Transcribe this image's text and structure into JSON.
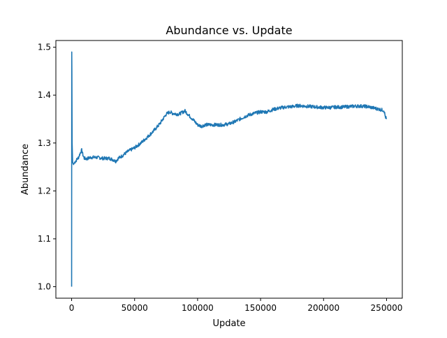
{
  "chart_data": {
    "type": "line",
    "title": "Abundance vs. Update",
    "xlabel": "Update",
    "ylabel": "Abundance",
    "xlim": [
      -12500,
      262500
    ],
    "ylim": [
      0.976,
      1.514
    ],
    "xticks": [
      0,
      50000,
      100000,
      150000,
      200000,
      250000
    ],
    "xtick_labels": [
      "0",
      "50000",
      "100000",
      "150000",
      "200000",
      "250000"
    ],
    "yticks": [
      1.0,
      1.1,
      1.2,
      1.3,
      1.4,
      1.5
    ],
    "ytick_labels": [
      "1.0",
      "1.1",
      "1.2",
      "1.3",
      "1.4",
      "1.5"
    ],
    "grid": false,
    "legend": "none",
    "series": [
      {
        "color": "#1f77b4",
        "x": [
          0,
          100,
          200,
          400,
          800,
          1500,
          2500,
          4000,
          5500,
          7000,
          8000,
          9000,
          10000,
          12000,
          15000,
          20000,
          25000,
          30000,
          33000,
          35000,
          37000,
          40000,
          45000,
          50000,
          55000,
          60000,
          65000,
          70000,
          75000,
          78000,
          80000,
          85000,
          90000,
          93000,
          96000,
          100000,
          103000,
          106000,
          110000,
          115000,
          120000,
          125000,
          130000,
          135000,
          140000,
          145000,
          150000,
          155000,
          160000,
          165000,
          170000,
          175000,
          180000,
          185000,
          190000,
          195000,
          200000,
          205000,
          210000,
          215000,
          220000,
          225000,
          230000,
          235000,
          240000,
          245000,
          248000,
          249000,
          250000
        ],
        "y": [
          1.0,
          1.49,
          1.45,
          1.3,
          1.26,
          1.255,
          1.26,
          1.265,
          1.27,
          1.28,
          1.285,
          1.275,
          1.268,
          1.267,
          1.27,
          1.27,
          1.268,
          1.268,
          1.265,
          1.262,
          1.268,
          1.273,
          1.283,
          1.29,
          1.3,
          1.312,
          1.325,
          1.34,
          1.36,
          1.365,
          1.362,
          1.36,
          1.367,
          1.358,
          1.35,
          1.338,
          1.335,
          1.338,
          1.338,
          1.338,
          1.338,
          1.34,
          1.345,
          1.352,
          1.358,
          1.362,
          1.365,
          1.365,
          1.37,
          1.373,
          1.375,
          1.376,
          1.378,
          1.377,
          1.376,
          1.375,
          1.374,
          1.374,
          1.375,
          1.375,
          1.376,
          1.377,
          1.377,
          1.376,
          1.373,
          1.37,
          1.368,
          1.355,
          1.35
        ],
        "noise": 0.0035
      }
    ]
  }
}
